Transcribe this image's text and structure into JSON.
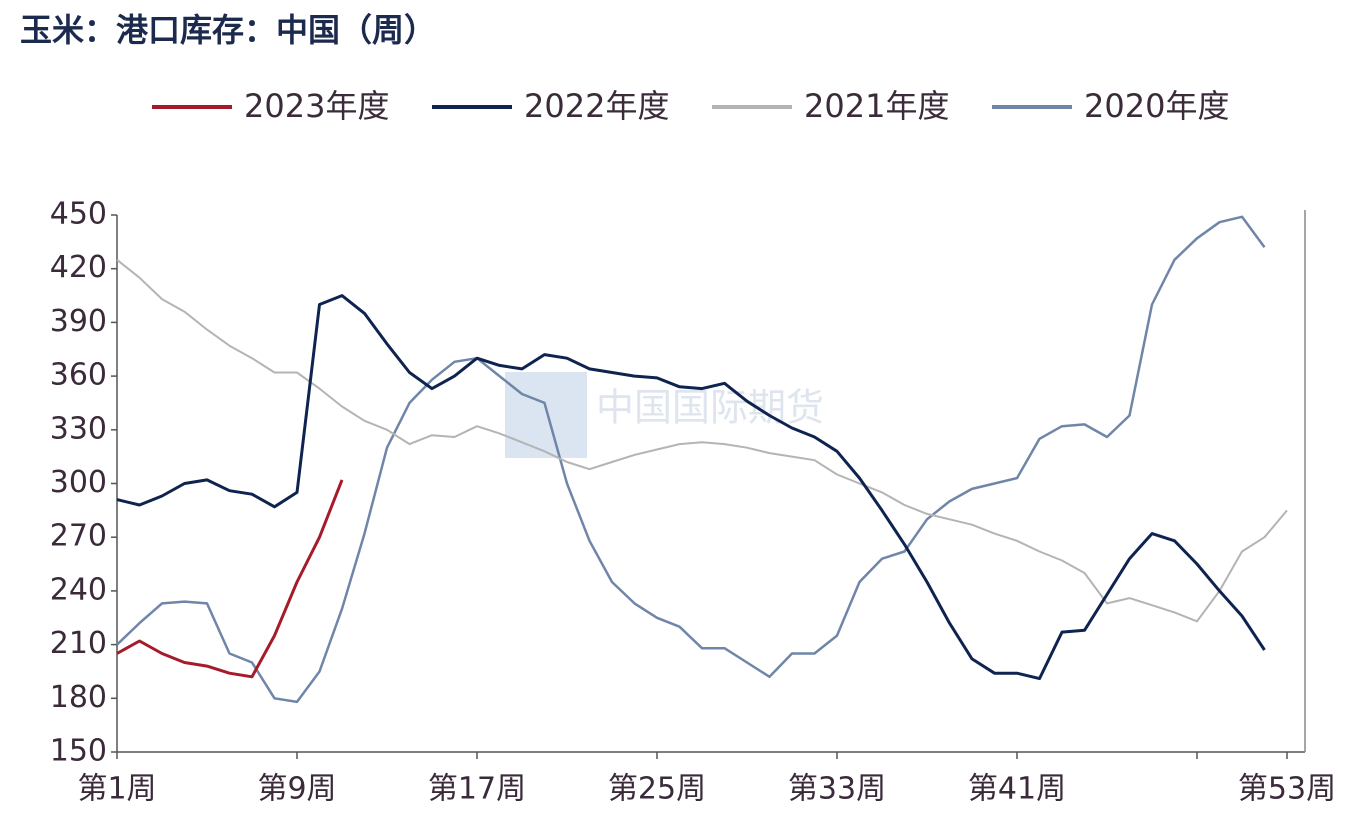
{
  "chart_data": {
    "type": "line",
    "title": "玉米：港口库存：中国（周）",
    "watermark": "中国国际期货",
    "x": [
      1,
      2,
      3,
      4,
      5,
      6,
      7,
      8,
      9,
      10,
      11,
      12,
      13,
      14,
      15,
      16,
      17,
      18,
      19,
      20,
      21,
      22,
      23,
      24,
      25,
      26,
      27,
      28,
      29,
      30,
      31,
      32,
      33,
      34,
      35,
      36,
      37,
      38,
      39,
      40,
      41,
      42,
      43,
      44,
      45,
      46,
      47,
      48,
      49,
      50,
      51,
      52,
      53
    ],
    "xlim": [
      1,
      53.8
    ],
    "xticks": [
      {
        "value": 1,
        "label": "第1周"
      },
      {
        "value": 9,
        "label": "第9周"
      },
      {
        "value": 17,
        "label": "第17周"
      },
      {
        "value": 25,
        "label": "第25周"
      },
      {
        "value": 33,
        "label": "第33周"
      },
      {
        "value": 41,
        "label": "第41周"
      },
      {
        "value": 49,
        "label": null
      },
      {
        "value": 53,
        "label": "第53周"
      }
    ],
    "ylim": [
      150,
      450
    ],
    "yticks": [
      150,
      180,
      210,
      240,
      270,
      300,
      330,
      360,
      390,
      420,
      450
    ],
    "grid": false,
    "legend": "top",
    "series": [
      {
        "name": "2023年度",
        "color": "#a61b29",
        "width": 3,
        "values": [
          205,
          212,
          205,
          200,
          198,
          194,
          192,
          215,
          245,
          270,
          302,
          null,
          null,
          null,
          null,
          null,
          null,
          null,
          null,
          null,
          null,
          null,
          null,
          null,
          null,
          null,
          null,
          null,
          null,
          null,
          null,
          null,
          null,
          null,
          null,
          null,
          null,
          null,
          null,
          null,
          null,
          null,
          null,
          null,
          null,
          null,
          null,
          null,
          null,
          null,
          null,
          null,
          null
        ]
      },
      {
        "name": "2022年度",
        "color": "#0f2350",
        "width": 3,
        "values": [
          291,
          288,
          293,
          300,
          302,
          296,
          294,
          287,
          295,
          400,
          405,
          395,
          378,
          362,
          353,
          360,
          370,
          366,
          364,
          372,
          370,
          364,
          362,
          360,
          359,
          354,
          353,
          356,
          346,
          338,
          331,
          326,
          318,
          303,
          285,
          266,
          245,
          222,
          202,
          194,
          194,
          191,
          217,
          218,
          238,
          258,
          272,
          268,
          255,
          240,
          226,
          207,
          null
        ]
      },
      {
        "name": "2021年度",
        "color": "#b4b4b4",
        "width": 2,
        "values": [
          425,
          415,
          403,
          396,
          386,
          377,
          370,
          362,
          362,
          353,
          343,
          335,
          330,
          322,
          327,
          326,
          332,
          328,
          323,
          318,
          312,
          308,
          312,
          316,
          319,
          322,
          323,
          322,
          320,
          317,
          315,
          313,
          305,
          300,
          295,
          288,
          283,
          280,
          277,
          272,
          268,
          262,
          257,
          250,
          233,
          236,
          232,
          228,
          223,
          240,
          262,
          270,
          285
        ]
      },
      {
        "name": "2020年度",
        "color": "#6f86a8",
        "width": 2.5,
        "values": [
          210,
          222,
          233,
          234,
          233,
          205,
          200,
          180,
          178,
          195,
          230,
          272,
          320,
          345,
          358,
          368,
          370,
          360,
          350,
          345,
          300,
          268,
          245,
          233,
          225,
          220,
          208,
          208,
          200,
          192,
          205,
          205,
          215,
          245,
          258,
          262,
          280,
          290,
          297,
          300,
          303,
          325,
          332,
          333,
          326,
          338,
          400,
          425,
          437,
          446,
          449,
          432,
          null
        ]
      }
    ]
  }
}
